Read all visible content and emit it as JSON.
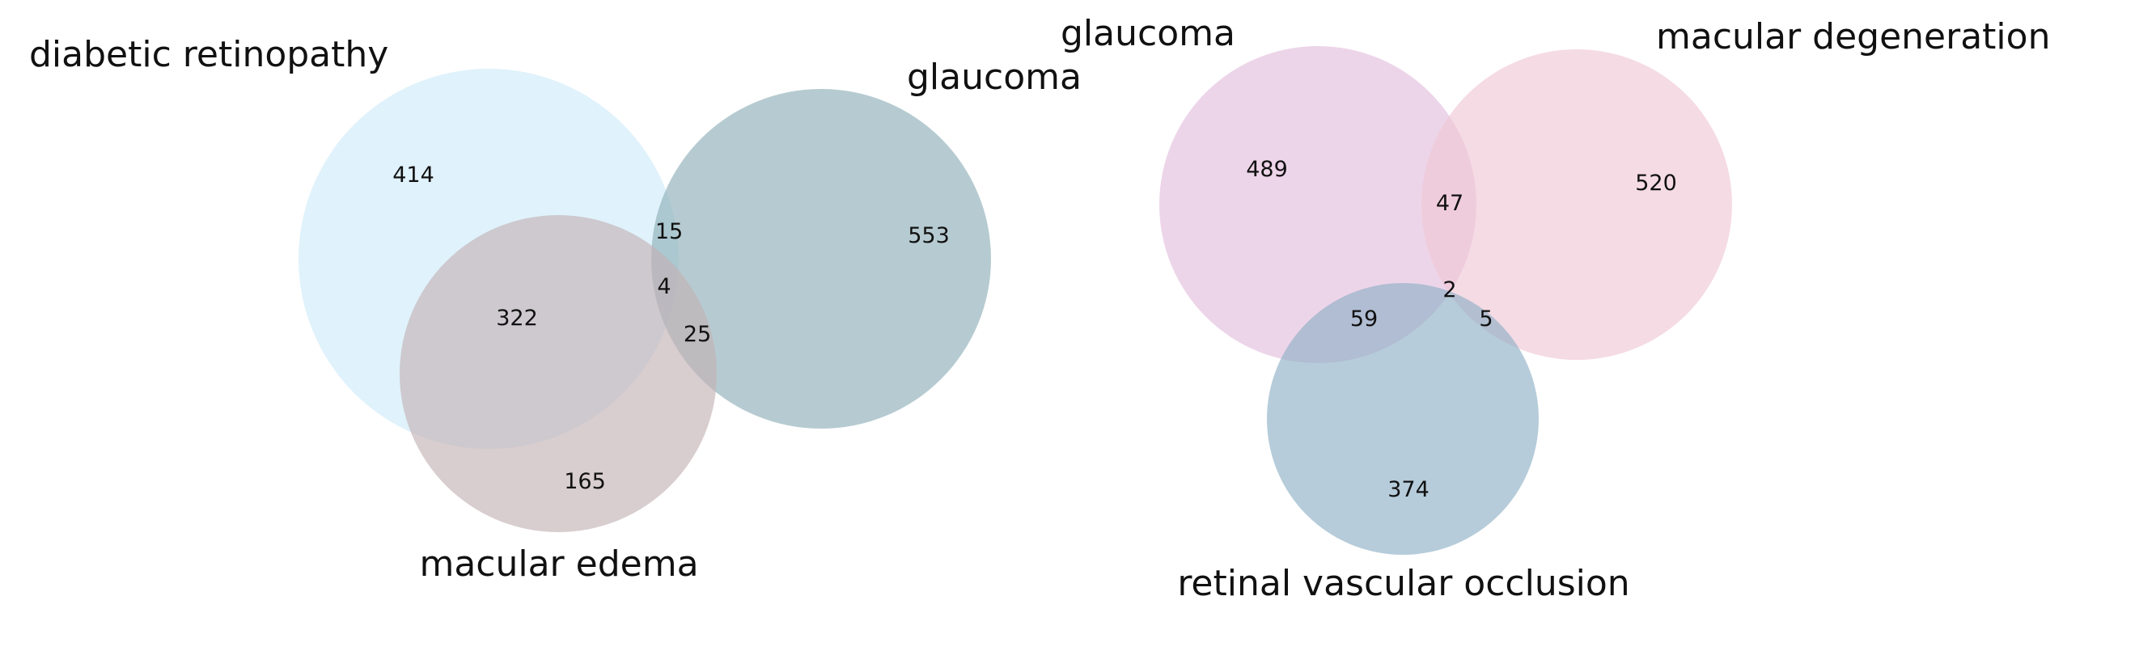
{
  "chart_data": [
    {
      "type": "venn",
      "sets": [
        "diabetic retinopathy",
        "glaucoma",
        "macular edema"
      ],
      "colors": [
        "#cbeaf8",
        "#8fafb8",
        "#c3b2b6"
      ],
      "regions": {
        "diabetic retinopathy only": 414,
        "glaucoma only": 553,
        "macular edema only": 165,
        "diabetic retinopathy & glaucoma": 15,
        "diabetic retinopathy & macular edema": 322,
        "glaucoma & macular edema": 25,
        "all three": 4
      }
    },
    {
      "type": "venn",
      "sets": [
        "glaucoma",
        "macular degeneration",
        "retinal vascular occlusion"
      ],
      "colors": [
        "#e3bfdd",
        "#f0c7d6",
        "#8fb0c6"
      ],
      "regions": {
        "glaucoma only": 489,
        "macular degeneration only": 520,
        "retinal vascular occlusion only": 374,
        "glaucoma & macular degeneration": 47,
        "glaucoma & retinal vascular occlusion": 59,
        "macular degeneration & retinal vascular occlusion": 5,
        "all three": 2
      }
    }
  ]
}
